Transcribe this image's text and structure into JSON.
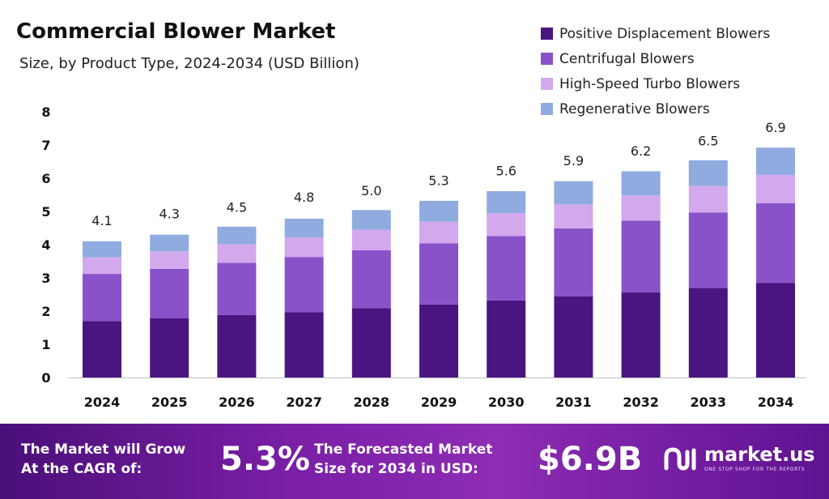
{
  "header": {
    "title": "Commercial Blower Market",
    "subtitle": "Size, by Product Type, 2024-2034 (USD Billion)"
  },
  "chart_data": {
    "type": "bar",
    "stacked": true,
    "categories": [
      "2024",
      "2025",
      "2026",
      "2027",
      "2028",
      "2029",
      "2030",
      "2031",
      "2032",
      "2033",
      "2034"
    ],
    "series": [
      {
        "name": "Positive Displacement Blowers",
        "color": "#4a1580",
        "values": [
          1.7,
          1.78,
          1.88,
          1.97,
          2.09,
          2.2,
          2.32,
          2.44,
          2.56,
          2.7,
          2.85
        ]
      },
      {
        "name": "Centrifugal Blowers",
        "color": "#8a52c9",
        "values": [
          1.42,
          1.49,
          1.57,
          1.66,
          1.74,
          1.84,
          1.94,
          2.05,
          2.16,
          2.27,
          2.4
        ]
      },
      {
        "name": "High-Speed Turbo Blowers",
        "color": "#d3a9ee",
        "values": [
          0.5,
          0.53,
          0.56,
          0.59,
          0.62,
          0.65,
          0.69,
          0.72,
          0.76,
          0.8,
          0.85
        ]
      },
      {
        "name": "Regenerative Blowers",
        "color": "#8fabe0",
        "values": [
          0.48,
          0.5,
          0.53,
          0.56,
          0.59,
          0.63,
          0.66,
          0.7,
          0.73,
          0.77,
          0.82
        ]
      }
    ],
    "totals": [
      4.1,
      4.3,
      4.5,
      4.8,
      5.0,
      5.3,
      5.6,
      5.9,
      6.2,
      6.5,
      6.9
    ],
    "total_labels": [
      "4.1",
      "4.3",
      "4.5",
      "4.8",
      "5.0",
      "5.3",
      "5.6",
      "5.9",
      "6.2",
      "6.5",
      "6.9"
    ],
    "ylim": [
      0,
      8
    ],
    "yticks": [
      "0",
      "1",
      "2",
      "3",
      "4",
      "5",
      "6",
      "7",
      "8"
    ],
    "legend_position": "top-right",
    "grid": false
  },
  "banner": {
    "cagr_label_line1": "The Market will Grow",
    "cagr_label_line2": "At the CAGR of:",
    "cagr_value": "5.3%",
    "forecast_label_line1": "The Forecasted Market",
    "forecast_label_line2": "Size for 2034 in USD:",
    "forecast_value": "$6.9B",
    "brand_name": "market.us",
    "brand_tagline": "ONE STOP SHOP FOR THE REPORTS"
  }
}
